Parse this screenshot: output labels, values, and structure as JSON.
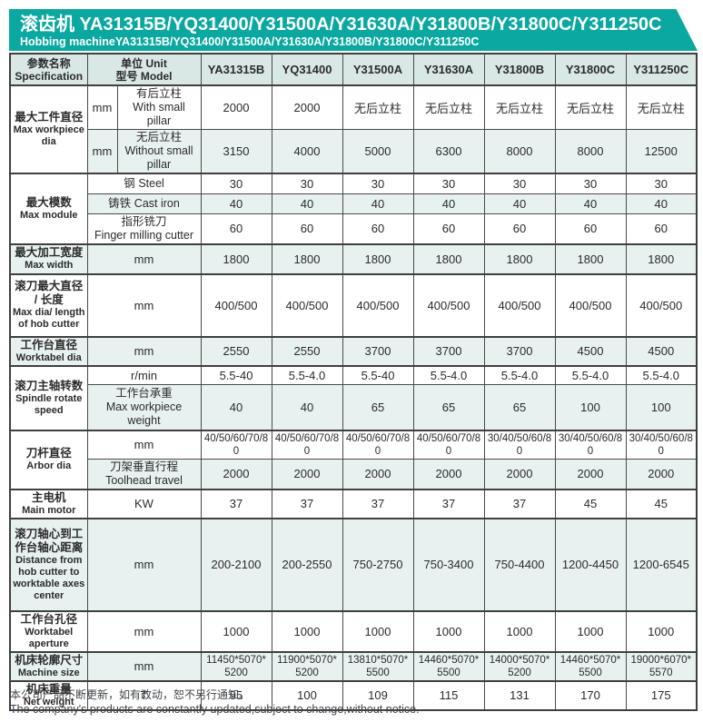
{
  "banner": {
    "title_zh": "滚齿机 YA31315B/YQ31400/Y31500A/Y31630A/Y31800B/Y31800C/Y311250C",
    "title_en": "Hobbing machineYA31315B/YQ31400/Y31500A/Y31630A/Y31800B/Y31800C/Y311250C"
  },
  "colors": {
    "banner_teal": "#0aa8a0",
    "header_bg": "#d9e7e5",
    "row_tint": "#e7f1f0",
    "border": "#4a4a4a"
  },
  "table": {
    "header": {
      "spec_zh": "参数名称",
      "spec_en": "Specification",
      "unit_line1": "单位 Unit",
      "unit_line2": "型号 Model",
      "models": [
        "YA31315B",
        "YQ31400",
        "Y31500A",
        "Y31630A",
        "Y31800B",
        "Y31800C",
        "Y311250C"
      ]
    },
    "groups": [
      {
        "name_zh": "最大工件直径",
        "name_en": "Max workpiece dia",
        "rows": [
          {
            "unit": "mm",
            "desc_zh": "有后立柱",
            "desc_en": "With small pillar",
            "values": [
              "2000",
              "2000",
              "无后立柱",
              "无后立柱",
              "无后立柱",
              "无后立柱",
              "无后立柱"
            ]
          },
          {
            "unit": "mm",
            "desc_zh": "无后立柱",
            "desc_en": "Without small pillar",
            "values": [
              "3150",
              "4000",
              "5000",
              "6300",
              "8000",
              "8000",
              "12500"
            ]
          }
        ]
      },
      {
        "name_zh": "最大模数",
        "name_en": "Max module",
        "rows": [
          {
            "desc2_zh": "钢",
            "desc2_en": "Steel",
            "inline": true,
            "values": [
              "30",
              "30",
              "30",
              "30",
              "30",
              "30",
              "30"
            ]
          },
          {
            "desc2_zh": "铸铁",
            "desc2_en": "Cast iron",
            "inline": true,
            "values": [
              "40",
              "40",
              "40",
              "40",
              "40",
              "40",
              "40"
            ]
          },
          {
            "desc2_zh": "指形铣刀",
            "desc2_en": "Finger milling cutter",
            "values": [
              "60",
              "60",
              "60",
              "60",
              "60",
              "60",
              "60"
            ]
          }
        ]
      },
      {
        "name_zh": "最大加工宽度",
        "name_en": "Max width",
        "rows": [
          {
            "unit_full": "mm",
            "values": [
              "1800",
              "1800",
              "1800",
              "1800",
              "1800",
              "1800",
              "1800"
            ]
          }
        ]
      },
      {
        "name_zh": "滚刀最大直径 / 长度",
        "name_en": "Max dia/ length of hob cutter",
        "rows": [
          {
            "unit_full": "mm",
            "values": [
              "400/500",
              "400/500",
              "400/500",
              "400/500",
              "400/500",
              "400/500",
              "400/500"
            ]
          }
        ]
      },
      {
        "name_zh": "工作台直径",
        "name_en": "Worktabel dia",
        "rows": [
          {
            "unit_full": "mm",
            "values": [
              "2550",
              "2550",
              "3700",
              "3700",
              "3700",
              "4500",
              "4500"
            ]
          }
        ]
      },
      {
        "name_zh": "滚刀主轴转数",
        "name_en": "Spindle rotate speed",
        "rows": [
          {
            "unit_full": "r/min",
            "values": [
              "5.5-40",
              "5.5-4.0",
              "5.5-40",
              "5.5-4.0",
              "5.5-4.0",
              "5.5-4.0",
              "5.5-4.0"
            ]
          },
          {
            "desc2_zh": "工作台承重",
            "desc2_en": "Max workpiece weight",
            "values": [
              "40",
              "40",
              "65",
              "65",
              "65",
              "100",
              "100"
            ]
          }
        ]
      },
      {
        "name_zh": "刀杆直径",
        "name_en": "Arbor dia",
        "rows": [
          {
            "unit_full": "mm",
            "values": [
              "40/50/60/70/80",
              "40/50/60/70/80",
              "40/50/60/70/80",
              "40/50/60/70/80",
              "30/40/50/60/80",
              "30/40/50/60/80",
              "30/40/50/60/80"
            ]
          },
          {
            "desc2_zh": "刀架垂直行程",
            "desc2_en": "Toolhead travel",
            "values": [
              "2000",
              "2000",
              "2000",
              "2000",
              "2000",
              "2000",
              "2000"
            ]
          }
        ]
      },
      {
        "name_zh": "主电机",
        "name_en": "Main motor",
        "rows": [
          {
            "unit_full": "KW",
            "values": [
              "37",
              "37",
              "37",
              "37",
              "37",
              "45",
              "45"
            ]
          }
        ]
      },
      {
        "name_zh": "滚刀轴心到工作台轴心距离",
        "name_en": "Distance from hob cutter to worktable axes center",
        "rows": [
          {
            "unit_full": "mm",
            "values": [
              "200-2100",
              "200-2550",
              "750-2750",
              "750-3400",
              "750-4400",
              "1200-4450",
              "1200-6545"
            ]
          }
        ]
      },
      {
        "name_zh": "工作台孔径",
        "name_en": "Worktabel aperture",
        "rows": [
          {
            "unit_full": "mm",
            "values": [
              "1000",
              "1000",
              "1000",
              "1000",
              "1000",
              "1000",
              "1000"
            ]
          }
        ]
      },
      {
        "name_zh": "机床轮廓尺寸",
        "name_en": "Machine size",
        "rows": [
          {
            "unit_full": "mm",
            "values": [
              "11450*5070*5200",
              "11900*5070*5200",
              "13810*5070*5500",
              "14460*5070*5500",
              "14000*5070*5200",
              "14460*5070*5500",
              "19000*6070*5570"
            ]
          }
        ]
      },
      {
        "name_zh": "机床重量",
        "name_en": "Net weight",
        "rows": [
          {
            "unit_full": "T",
            "values": [
              "95",
              "100",
              "109",
              "115",
              "131",
              "170",
              "175"
            ]
          }
        ]
      }
    ]
  },
  "footer": {
    "line_zh": "本公司产品不断更新，如有改动，恕不另行通知。",
    "line_en": "The company's products are constantly updated,subject to change,without notice."
  }
}
